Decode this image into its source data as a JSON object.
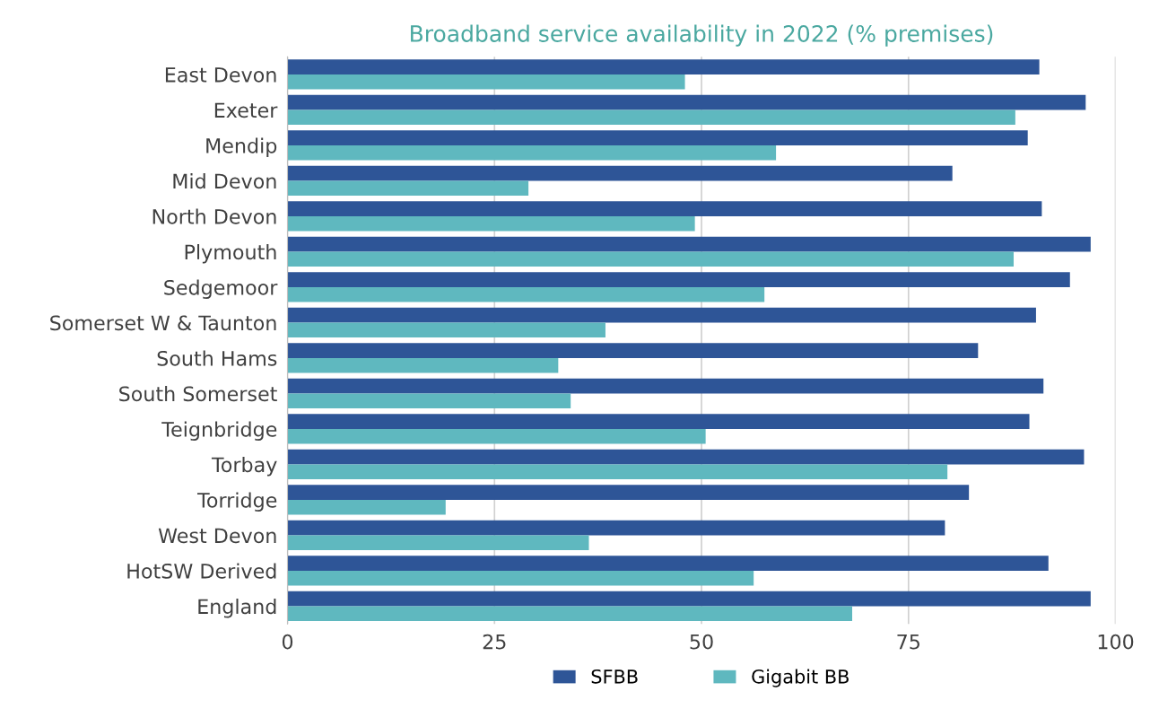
{
  "chart_data": {
    "type": "bar",
    "orientation": "horizontal",
    "title": "Broadband service availability in 2022 (% premises)",
    "categories": [
      "East Devon",
      "Exeter",
      "Mendip",
      "Mid Devon",
      "North Devon",
      "Plymouth",
      "Sedgemoor",
      "Somerset W & Taunton",
      "South Hams",
      "South Somerset",
      "Teignbridge",
      "Torbay",
      "Torridge",
      "West Devon",
      "HotSW Derived",
      "England"
    ],
    "series": [
      {
        "name": "SFBB",
        "color": "#2e5597",
        "values": [
          90.8,
          96.4,
          89.4,
          80.3,
          91.1,
          97.0,
          94.5,
          90.4,
          83.4,
          91.3,
          89.6,
          96.2,
          82.3,
          79.4,
          91.9,
          97.0
        ]
      },
      {
        "name": "Gigabit BB",
        "color": "#5fb8bf",
        "values": [
          48.0,
          87.9,
          59.0,
          29.1,
          49.2,
          87.7,
          57.6,
          38.4,
          32.7,
          34.2,
          50.5,
          79.7,
          19.1,
          36.4,
          56.3,
          68.2
        ]
      }
    ],
    "xlim": [
      0,
      100
    ],
    "xticks": [
      0,
      25,
      50,
      75,
      100
    ],
    "grid": "x",
    "legend": "bottom"
  }
}
